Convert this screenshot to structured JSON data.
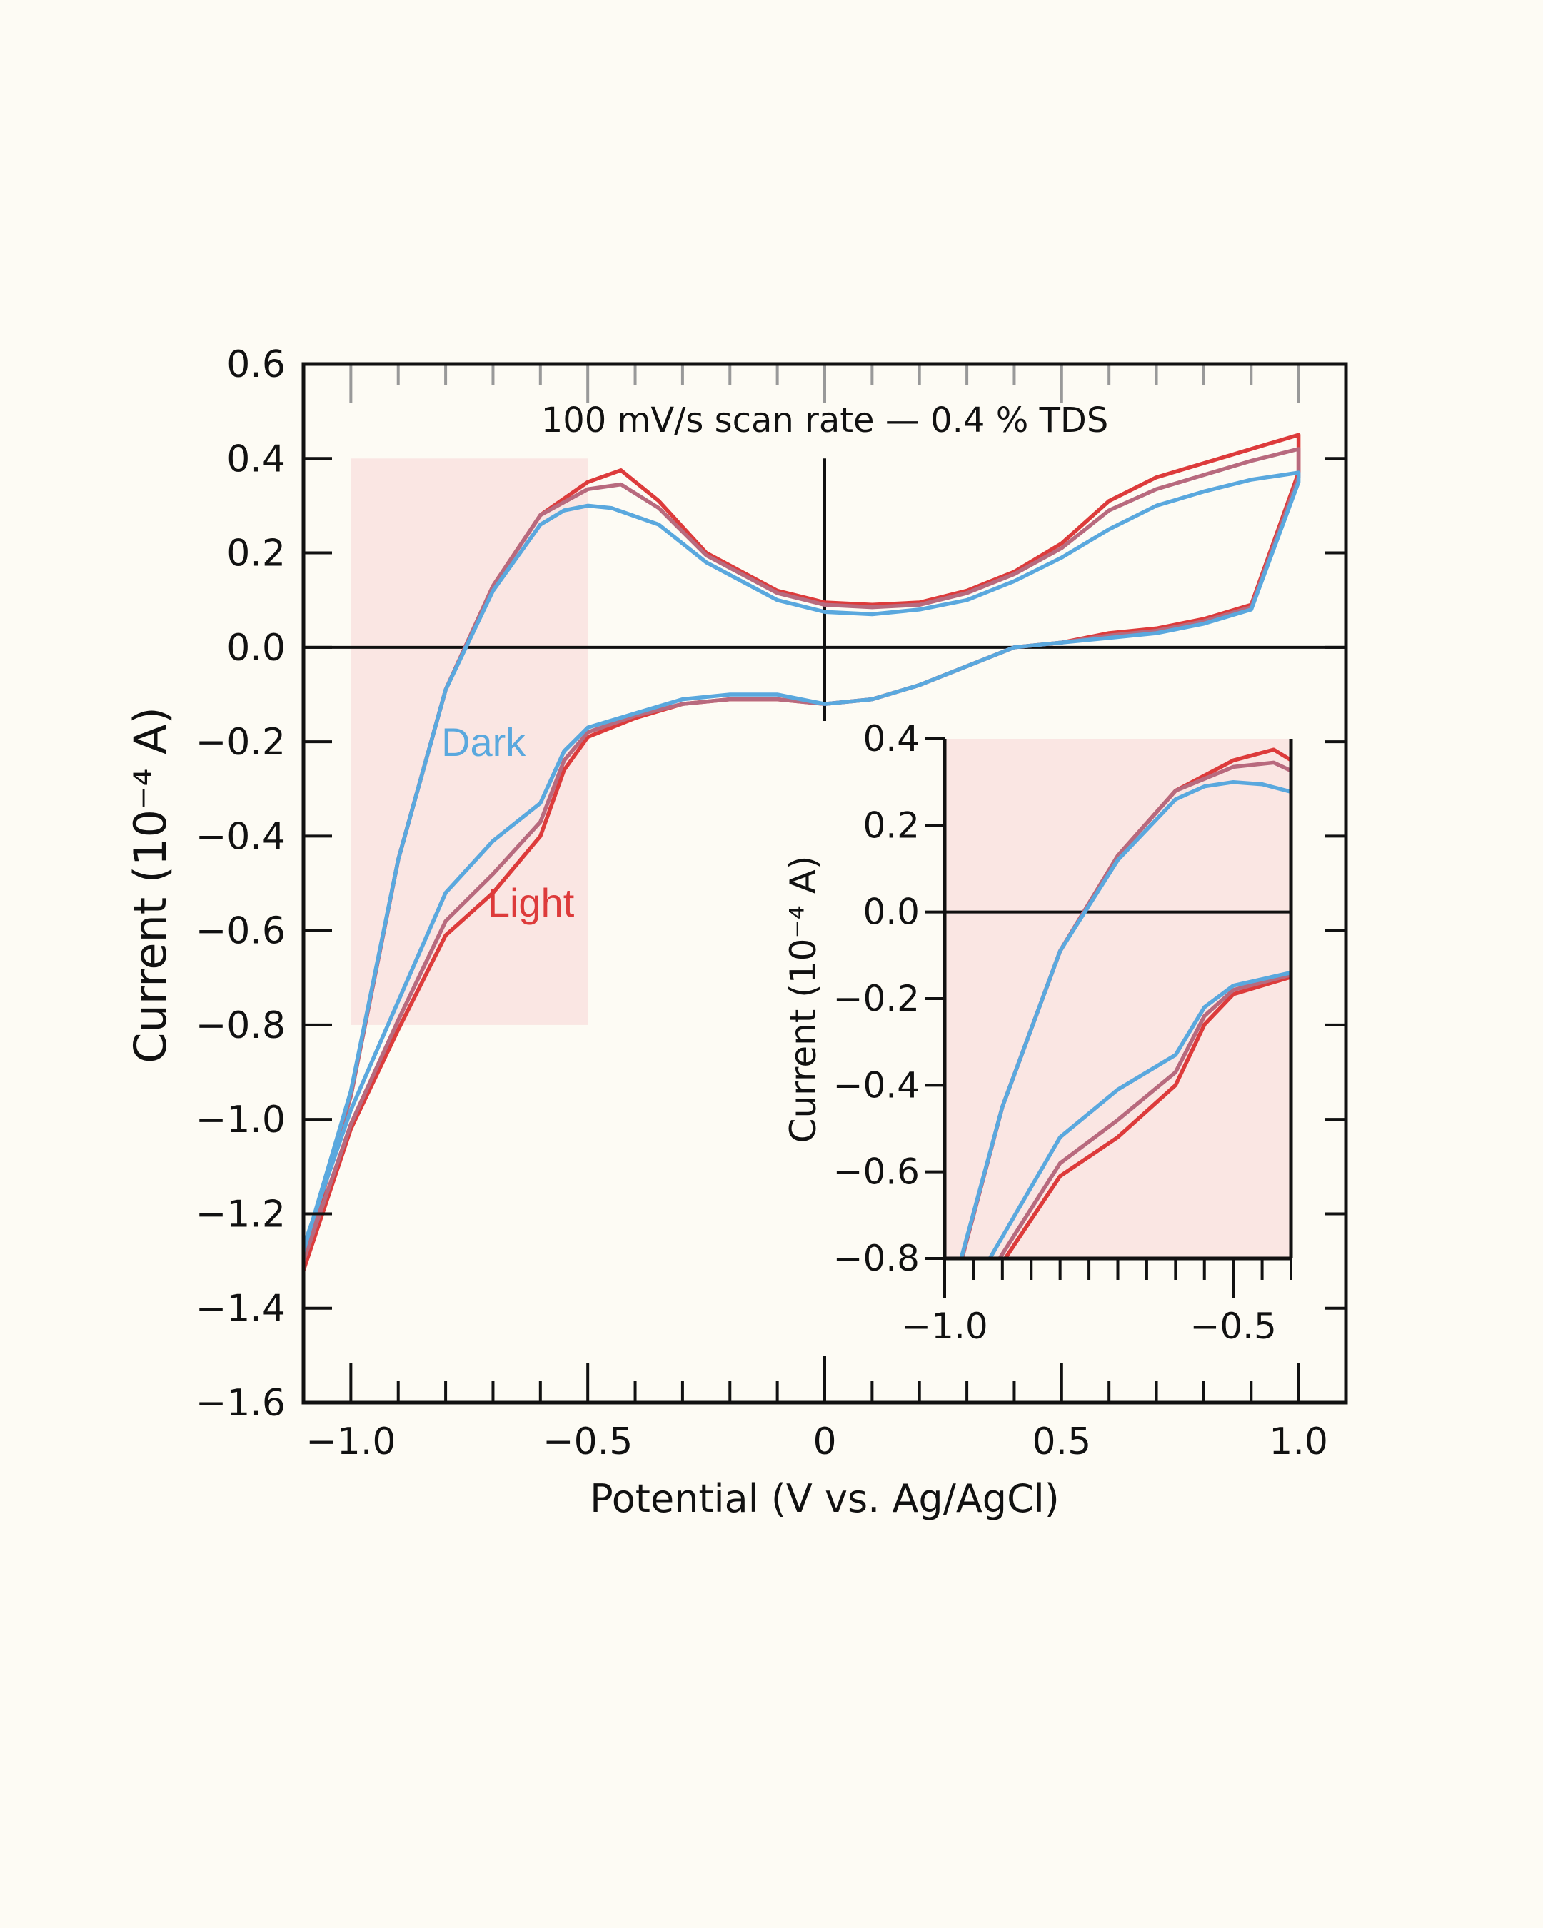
{
  "chart_data": [
    {
      "type": "line",
      "subtype": "cyclic-voltammogram",
      "title": "100 mV/s scan rate — 0.4 % TDS",
      "xlabel": "Potential (V vs. Ag/AgCl)",
      "ylabel": "Current (10⁻⁴ A)",
      "xlim": [
        -1.1,
        1.1
      ],
      "ylim": [
        -1.6,
        0.6
      ],
      "x_ticks": [
        -1.0,
        -0.5,
        0,
        0.5,
        1.0
      ],
      "x_tick_labels": [
        "−1.0",
        "−0.5",
        "0",
        "0.5",
        "1.0"
      ],
      "y_ticks": [
        0.6,
        0.4,
        0.2,
        0.0,
        -0.2,
        -0.4,
        -0.6,
        -0.8,
        -1.0,
        -1.2,
        -1.4,
        -1.6
      ],
      "y_tick_labels": [
        "0.6",
        "0.4",
        "0.2",
        "0.0",
        "−0.2",
        "−0.4",
        "−0.6",
        "−0.8",
        "−1.0",
        "−1.2",
        "−1.4",
        "−1.6"
      ],
      "highlight_region": {
        "x": [
          -1.0,
          -0.5
        ],
        "y": [
          -0.8,
          0.4
        ],
        "color": "#fae6e3"
      },
      "annotations": [
        {
          "text": "Dark",
          "x": -0.72,
          "y": -0.23,
          "color": "#5aa8de"
        },
        {
          "text": "Light",
          "x": -0.62,
          "y": -0.57,
          "color": "#dd3b3b"
        }
      ],
      "grid": false,
      "series": [
        {
          "color": "#dd3b3b",
          "upper": [
            [
              -1.1,
              -1.3
            ],
            [
              -1.0,
              -0.95
            ],
            [
              -0.9,
              -0.45
            ],
            [
              -0.8,
              -0.09
            ],
            [
              -0.7,
              0.13
            ],
            [
              -0.6,
              0.28
            ],
            [
              -0.5,
              0.35
            ],
            [
              -0.43,
              0.375
            ],
            [
              -0.35,
              0.31
            ],
            [
              -0.25,
              0.2
            ],
            [
              -0.1,
              0.12
            ],
            [
              0.0,
              0.095
            ],
            [
              0.1,
              0.09
            ],
            [
              0.2,
              0.095
            ],
            [
              0.3,
              0.12
            ],
            [
              0.4,
              0.16
            ],
            [
              0.5,
              0.22
            ],
            [
              0.6,
              0.31
            ],
            [
              0.7,
              0.36
            ],
            [
              0.8,
              0.39
            ],
            [
              0.9,
              0.42
            ],
            [
              1.0,
              0.45
            ]
          ],
          "lower": [
            [
              1.0,
              0.37
            ],
            [
              0.9,
              0.09
            ],
            [
              0.8,
              0.06
            ],
            [
              0.7,
              0.04
            ],
            [
              0.6,
              0.03
            ],
            [
              0.5,
              0.01
            ],
            [
              0.4,
              0.0
            ],
            [
              0.3,
              -0.04
            ],
            [
              0.2,
              -0.08
            ],
            [
              0.1,
              -0.11
            ],
            [
              0.0,
              -0.12
            ],
            [
              -0.1,
              -0.11
            ],
            [
              -0.2,
              -0.11
            ],
            [
              -0.3,
              -0.12
            ],
            [
              -0.4,
              -0.15
            ],
            [
              -0.5,
              -0.19
            ],
            [
              -0.55,
              -0.26
            ],
            [
              -0.6,
              -0.4
            ],
            [
              -0.7,
              -0.52
            ],
            [
              -0.8,
              -0.61
            ],
            [
              -0.9,
              -0.81
            ],
            [
              -1.0,
              -1.02
            ],
            [
              -1.1,
              -1.32
            ]
          ]
        },
        {
          "color": "#b86a7e",
          "upper": [
            [
              -1.1,
              -1.29
            ],
            [
              -1.0,
              -0.95
            ],
            [
              -0.9,
              -0.45
            ],
            [
              -0.8,
              -0.09
            ],
            [
              -0.7,
              0.13
            ],
            [
              -0.6,
              0.28
            ],
            [
              -0.5,
              0.335
            ],
            [
              -0.43,
              0.345
            ],
            [
              -0.35,
              0.295
            ],
            [
              -0.25,
              0.195
            ],
            [
              -0.1,
              0.115
            ],
            [
              0.0,
              0.09
            ],
            [
              0.1,
              0.085
            ],
            [
              0.2,
              0.09
            ],
            [
              0.3,
              0.115
            ],
            [
              0.4,
              0.155
            ],
            [
              0.5,
              0.21
            ],
            [
              0.6,
              0.29
            ],
            [
              0.7,
              0.335
            ],
            [
              0.8,
              0.365
            ],
            [
              0.9,
              0.395
            ],
            [
              1.0,
              0.42
            ]
          ],
          "lower": [
            [
              1.0,
              0.36
            ],
            [
              0.9,
              0.085
            ],
            [
              0.8,
              0.055
            ],
            [
              0.7,
              0.035
            ],
            [
              0.6,
              0.025
            ],
            [
              0.5,
              0.01
            ],
            [
              0.4,
              0.0
            ],
            [
              0.3,
              -0.04
            ],
            [
              0.2,
              -0.08
            ],
            [
              0.1,
              -0.11
            ],
            [
              0.0,
              -0.12
            ],
            [
              -0.1,
              -0.11
            ],
            [
              -0.2,
              -0.11
            ],
            [
              -0.3,
              -0.12
            ],
            [
              -0.4,
              -0.145
            ],
            [
              -0.5,
              -0.18
            ],
            [
              -0.55,
              -0.24
            ],
            [
              -0.6,
              -0.37
            ],
            [
              -0.7,
              -0.48
            ],
            [
              -0.8,
              -0.58
            ],
            [
              -0.9,
              -0.79
            ],
            [
              -1.0,
              -1.01
            ],
            [
              -1.1,
              -1.3
            ]
          ]
        },
        {
          "color": "#5aa8de",
          "upper": [
            [
              -1.1,
              -1.28
            ],
            [
              -1.0,
              -0.94
            ],
            [
              -0.9,
              -0.45
            ],
            [
              -0.8,
              -0.09
            ],
            [
              -0.7,
              0.12
            ],
            [
              -0.6,
              0.26
            ],
            [
              -0.55,
              0.29
            ],
            [
              -0.5,
              0.3
            ],
            [
              -0.45,
              0.295
            ],
            [
              -0.35,
              0.26
            ],
            [
              -0.25,
              0.18
            ],
            [
              -0.1,
              0.1
            ],
            [
              0.0,
              0.075
            ],
            [
              0.1,
              0.07
            ],
            [
              0.2,
              0.08
            ],
            [
              0.3,
              0.1
            ],
            [
              0.4,
              0.14
            ],
            [
              0.5,
              0.19
            ],
            [
              0.6,
              0.25
            ],
            [
              0.7,
              0.3
            ],
            [
              0.8,
              0.33
            ],
            [
              0.9,
              0.355
            ],
            [
              1.0,
              0.37
            ]
          ],
          "lower": [
            [
              1.0,
              0.35
            ],
            [
              0.9,
              0.08
            ],
            [
              0.8,
              0.05
            ],
            [
              0.7,
              0.03
            ],
            [
              0.6,
              0.02
            ],
            [
              0.5,
              0.01
            ],
            [
              0.4,
              0.0
            ],
            [
              0.3,
              -0.04
            ],
            [
              0.2,
              -0.08
            ],
            [
              0.1,
              -0.11
            ],
            [
              0.0,
              -0.12
            ],
            [
              -0.1,
              -0.1
            ],
            [
              -0.2,
              -0.1
            ],
            [
              -0.3,
              -0.11
            ],
            [
              -0.4,
              -0.14
            ],
            [
              -0.5,
              -0.17
            ],
            [
              -0.55,
              -0.22
            ],
            [
              -0.6,
              -0.33
            ],
            [
              -0.7,
              -0.41
            ],
            [
              -0.8,
              -0.52
            ],
            [
              -0.9,
              -0.75
            ],
            [
              -1.0,
              -0.98
            ],
            [
              -1.1,
              -1.27
            ]
          ]
        }
      ]
    },
    {
      "type": "line",
      "subtype": "inset",
      "xlabel": "",
      "ylabel": "Current (10⁻⁴ A)",
      "xlim": [
        -1.0,
        -0.4
      ],
      "ylim": [
        -0.8,
        0.4
      ],
      "x_ticks": [
        -1.0,
        -0.5
      ],
      "x_tick_labels": [
        "−1.0",
        "−0.5"
      ],
      "y_ticks": [
        0.4,
        0.2,
        0.0,
        -0.2,
        -0.4,
        -0.6,
        -0.8
      ],
      "y_tick_labels": [
        "0.4",
        "0.2",
        "0.0",
        "−0.2",
        "−0.4",
        "−0.6",
        "−0.8"
      ],
      "background": "#fae6e3",
      "series_ref": "same curves as main plot, zoomed to x ∈ [−1.0, −0.4], y ∈ [−0.8, 0.4]"
    }
  ]
}
